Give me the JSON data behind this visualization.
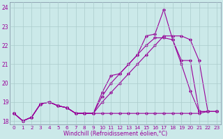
{
  "bg_color": "#cbe9e9",
  "line_color": "#990099",
  "grid_color": "#aacccc",
  "xlim": [
    -0.5,
    23.5
  ],
  "ylim": [
    17.8,
    24.3
  ],
  "yticks": [
    18,
    19,
    20,
    21,
    22,
    23,
    24
  ],
  "xticks": [
    0,
    1,
    2,
    3,
    4,
    5,
    6,
    7,
    8,
    9,
    10,
    11,
    12,
    13,
    14,
    15,
    16,
    17,
    18,
    19,
    20,
    21,
    22,
    23
  ],
  "xlabel": "Windchill (Refroidissement éolien,°C)",
  "series": [
    {
      "x": [
        0,
        1,
        2,
        3,
        4,
        5,
        6,
        7,
        8,
        9,
        10,
        11,
        12,
        13,
        14,
        15,
        16,
        17,
        18,
        19,
        20,
        21,
        22,
        23
      ],
      "y": [
        18.4,
        18.0,
        18.2,
        18.9,
        19.0,
        18.8,
        18.7,
        18.4,
        18.4,
        18.4,
        18.4,
        18.4,
        18.4,
        18.4,
        18.4,
        18.4,
        18.4,
        18.4,
        18.4,
        18.4,
        18.4,
        18.4,
        18.5,
        18.5
      ]
    },
    {
      "x": [
        0,
        1,
        2,
        3,
        4,
        5,
        6,
        7,
        8,
        9,
        10,
        11,
        12,
        13,
        14,
        15,
        16,
        17,
        18,
        19,
        20,
        21,
        22,
        23
      ],
      "y": [
        18.4,
        18.0,
        18.2,
        18.9,
        19.0,
        18.8,
        18.7,
        18.4,
        18.4,
        18.4,
        19.0,
        19.5,
        20.0,
        20.5,
        21.0,
        21.5,
        22.0,
        22.5,
        22.5,
        22.5,
        22.3,
        21.2,
        18.5,
        18.5
      ]
    },
    {
      "x": [
        0,
        1,
        2,
        3,
        4,
        5,
        6,
        7,
        8,
        9,
        10,
        11,
        12,
        13,
        14,
        15,
        16,
        17,
        18,
        19,
        20,
        21,
        22,
        23
      ],
      "y": [
        18.4,
        18.0,
        18.2,
        18.9,
        19.0,
        18.8,
        18.7,
        18.4,
        18.4,
        18.4,
        19.5,
        20.4,
        20.5,
        21.0,
        21.5,
        22.5,
        22.6,
        23.9,
        22.3,
        21.0,
        19.6,
        18.5,
        18.5,
        18.5
      ]
    },
    {
      "x": [
        0,
        1,
        2,
        3,
        4,
        5,
        6,
        7,
        8,
        9,
        10,
        11,
        12,
        13,
        14,
        15,
        16,
        17,
        18,
        19,
        20,
        21,
        22,
        23
      ],
      "y": [
        18.4,
        18.0,
        18.2,
        18.9,
        19.0,
        18.8,
        18.7,
        18.4,
        18.4,
        18.4,
        19.3,
        20.0,
        20.5,
        21.0,
        21.5,
        22.0,
        22.4,
        22.4,
        22.3,
        21.2,
        21.2,
        18.5,
        18.5,
        18.5
      ]
    }
  ]
}
